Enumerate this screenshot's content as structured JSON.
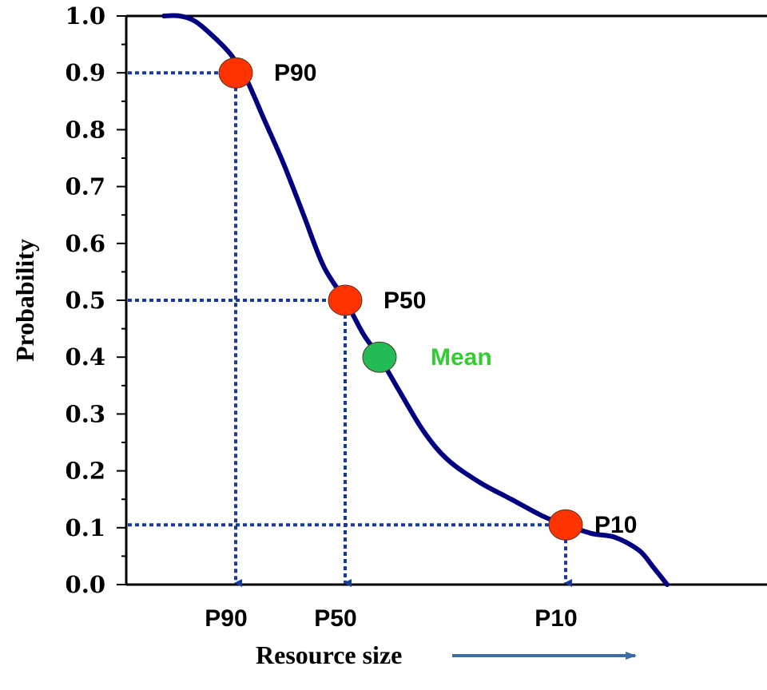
{
  "chart_data": {
    "type": "line",
    "title": "",
    "xlabel": "Resource size",
    "ylabel": "Probability",
    "ylim": [
      0,
      1
    ],
    "yticks": [
      "0.0",
      "0.1",
      "0.2",
      "0.3",
      "0.4",
      "0.5",
      "0.6",
      "0.7",
      "0.8",
      "0.9",
      "1.0"
    ],
    "grid": false,
    "series": [
      {
        "values": [
          [
            205,
            1.0
          ],
          [
            225,
            1.0
          ],
          [
            245,
            0.99
          ],
          [
            270,
            0.96
          ],
          [
            290,
            0.93
          ],
          [
            308,
            0.89
          ],
          [
            330,
            0.82
          ],
          [
            355,
            0.74
          ],
          [
            380,
            0.65
          ],
          [
            405,
            0.56
          ],
          [
            432,
            0.5
          ],
          [
            455,
            0.44
          ],
          [
            475,
            0.4
          ],
          [
            500,
            0.34
          ],
          [
            530,
            0.27
          ],
          [
            560,
            0.22
          ],
          [
            600,
            0.18
          ],
          [
            640,
            0.15
          ],
          [
            680,
            0.12
          ],
          [
            708,
            0.105
          ],
          [
            740,
            0.09
          ],
          [
            770,
            0.083
          ],
          [
            800,
            0.06
          ],
          [
            818,
            0.03
          ],
          [
            835,
            0.0
          ]
        ],
        "color": "#000080"
      }
    ],
    "markers": [
      {
        "label": "P90",
        "x": 295,
        "y": 0.9,
        "color": "#ff3300",
        "x_label": "P90"
      },
      {
        "label": "P50",
        "x": 432,
        "y": 0.5,
        "color": "#ff3300",
        "x_label": "P50"
      },
      {
        "label": "Mean",
        "x": 475,
        "y": 0.4,
        "color": "#22bb55",
        "text_color": "#33cc33"
      },
      {
        "label": "P10",
        "x": 708,
        "y": 0.105,
        "color": "#ff3300",
        "x_label": "P10"
      }
    ],
    "colors": {
      "curve": "#000080",
      "guides": "#1a3a9a",
      "axis_arrow": "#3a6ea5"
    }
  }
}
